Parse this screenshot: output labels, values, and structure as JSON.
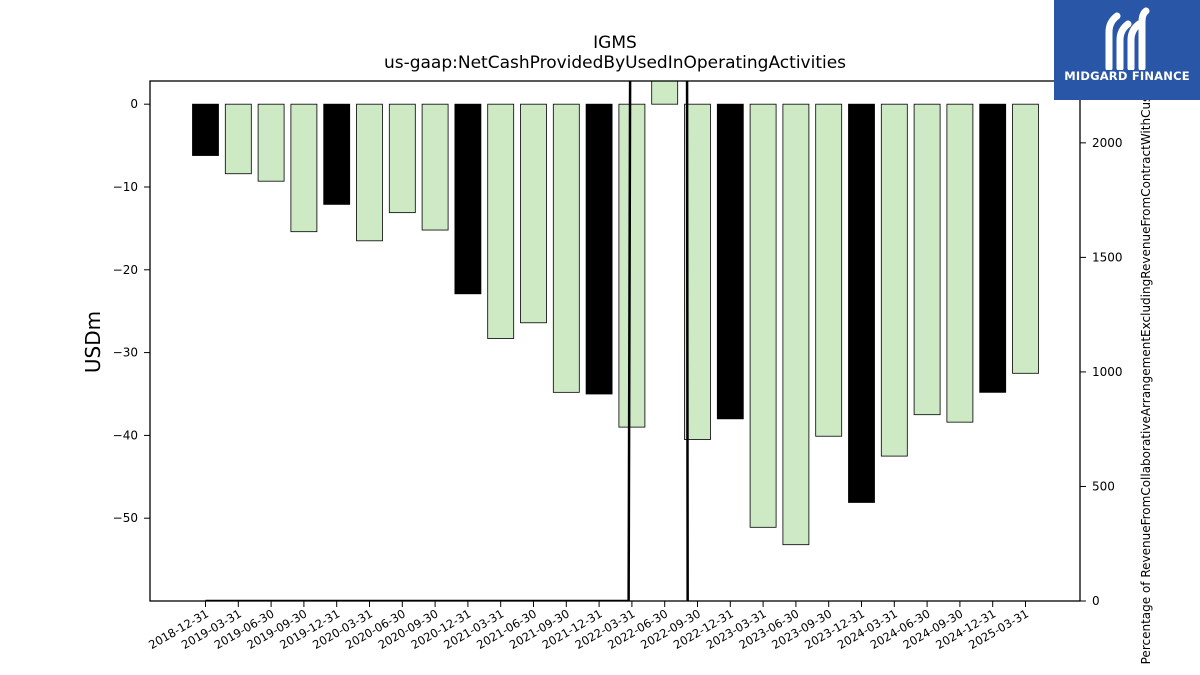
{
  "chart_data": {
    "type": "bar",
    "title": "IGMS",
    "subtitle": "us-gaap:NetCashProvidedByUsedInOperatingActivities",
    "ylabel": "USDm",
    "y2label": "Percentage of RevenueFromCollaborativeArrangementExcludingRevenueFromContractWithCustomer",
    "categories": [
      "2018-12-31",
      "2019-03-31",
      "2019-06-30",
      "2019-09-30",
      "2019-12-31",
      "2020-03-31",
      "2020-06-30",
      "2020-09-30",
      "2020-12-31",
      "2021-03-31",
      "2021-06-30",
      "2021-09-30",
      "2021-12-31",
      "2022-03-31",
      "2022-06-30",
      "2022-09-30",
      "2022-12-31",
      "2023-03-31",
      "2023-06-30",
      "2023-09-30",
      "2023-12-31",
      "2024-03-31",
      "2024-06-30",
      "2024-09-30",
      "2024-12-31",
      "2025-03-31"
    ],
    "values": [
      -6.2,
      -8.4,
      -9.3,
      -15.4,
      -12.1,
      -16.5,
      -13.1,
      -15.2,
      -22.9,
      -28.3,
      -26.4,
      -34.8,
      -35.0,
      -39.0,
      2.8,
      -40.5,
      -38.0,
      -51.1,
      -53.2,
      -40.1,
      -48.1,
      -42.5,
      -37.5,
      -38.4,
      -34.8,
      -32.5
    ],
    "fiscal_year_end": [
      true,
      false,
      false,
      false,
      true,
      false,
      false,
      false,
      true,
      false,
      false,
      false,
      true,
      false,
      false,
      false,
      true,
      false,
      false,
      false,
      true,
      false,
      false,
      false,
      true,
      false
    ],
    "ylim": [
      -60,
      2.8
    ],
    "yticks": [
      0,
      -10,
      -20,
      -30,
      -40,
      -50
    ],
    "series2": {
      "x_start": 0,
      "values": [
        0,
        0,
        0,
        0,
        0,
        0,
        0,
        0,
        0,
        0,
        0,
        0,
        0,
        0,
        0,
        0,
        0,
        0,
        0,
        0,
        0,
        0,
        0,
        0,
        0,
        0
      ],
      "spike": [
        {
          "from_index": 12.9,
          "to_index": 14.7,
          "peak": 2500
        }
      ],
      "ylim": [
        0,
        2270
      ],
      "yticks": [
        0,
        500,
        1000,
        1500,
        2000
      ]
    },
    "colors": {
      "fiscal_year_end": "#000000",
      "quarter": "#cdeac5",
      "line": "#000000"
    },
    "grid": false,
    "legend": "none"
  },
  "logo": {
    "text": "MIDGARD FINANCE"
  }
}
